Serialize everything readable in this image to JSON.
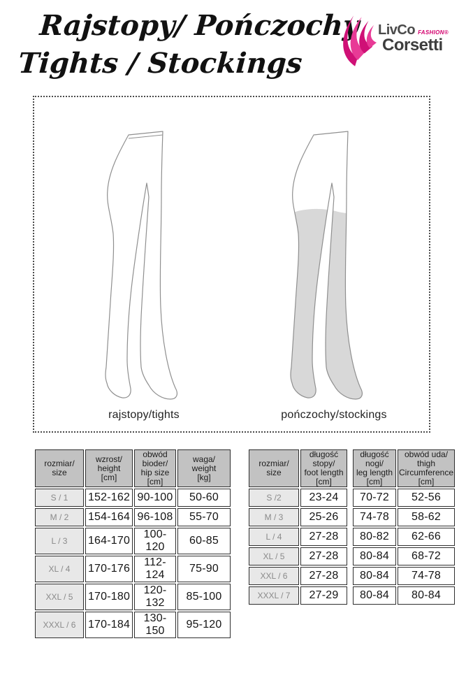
{
  "title": {
    "line1": "Rajstopy/ Pończochy",
    "line2": "Tights / Stockings"
  },
  "logo": {
    "brand_top": "LivCo",
    "brand_fashion": "FASHION®",
    "brand_bottom": "Corsetti",
    "accent_color": "#d4006e",
    "text_color": "#4a4a4a"
  },
  "diagram": {
    "tights_label": "rajstopy/tights",
    "stockings_label": "pończochy/stockings",
    "stocking_fill_color": "#d8d8d8",
    "outline_color": "#8f8f8f"
  },
  "tables": {
    "tights": {
      "header_texts": [
        "rozmiar/\nsize",
        "wzrost/\nheight\n[cm]",
        "obwód bioder/\nhip size\n[cm]",
        "waga/\nweight\n[kg]"
      ],
      "rows": [
        [
          "S / 1",
          "152-162",
          "90-100",
          "50-60"
        ],
        [
          "M / 2",
          "154-164",
          "96-108",
          "55-70"
        ],
        [
          "L / 3",
          "164-170",
          "100-120",
          "60-85"
        ],
        [
          "XL / 4",
          "170-176",
          "112-124",
          "75-90"
        ],
        [
          "XXL / 5",
          "170-180",
          "120-132",
          "85-100"
        ],
        [
          "XXXL / 6",
          "170-184",
          "130-150",
          "95-120"
        ]
      ]
    },
    "stockings": {
      "header_texts": [
        "rozmiar/\nsize",
        "długość stopy/\nfoot length\n[cm]",
        "długość nogi/\nleg length\n[cm]",
        "obwód uda/\nthigh\nCircumference\n[cm]"
      ],
      "rows": [
        [
          "S /2",
          "23-24",
          "70-72",
          "52-56"
        ],
        [
          "M / 3",
          "25-26",
          "74-78",
          "58-62"
        ],
        [
          "L / 4",
          "27-28",
          "80-82",
          "62-66"
        ],
        [
          "XL / 5",
          "27-28",
          "80-84",
          "68-72"
        ],
        [
          "XXL / 6",
          "27-28",
          "80-84",
          "74-78"
        ],
        [
          "XXXL / 7",
          "27-29",
          "80-84",
          "80-84"
        ]
      ]
    }
  },
  "colors": {
    "table_header_bg": "#c2c2c2",
    "table_size_col_bg": "#e8e8e8",
    "table_border": "#2f2f2f"
  }
}
